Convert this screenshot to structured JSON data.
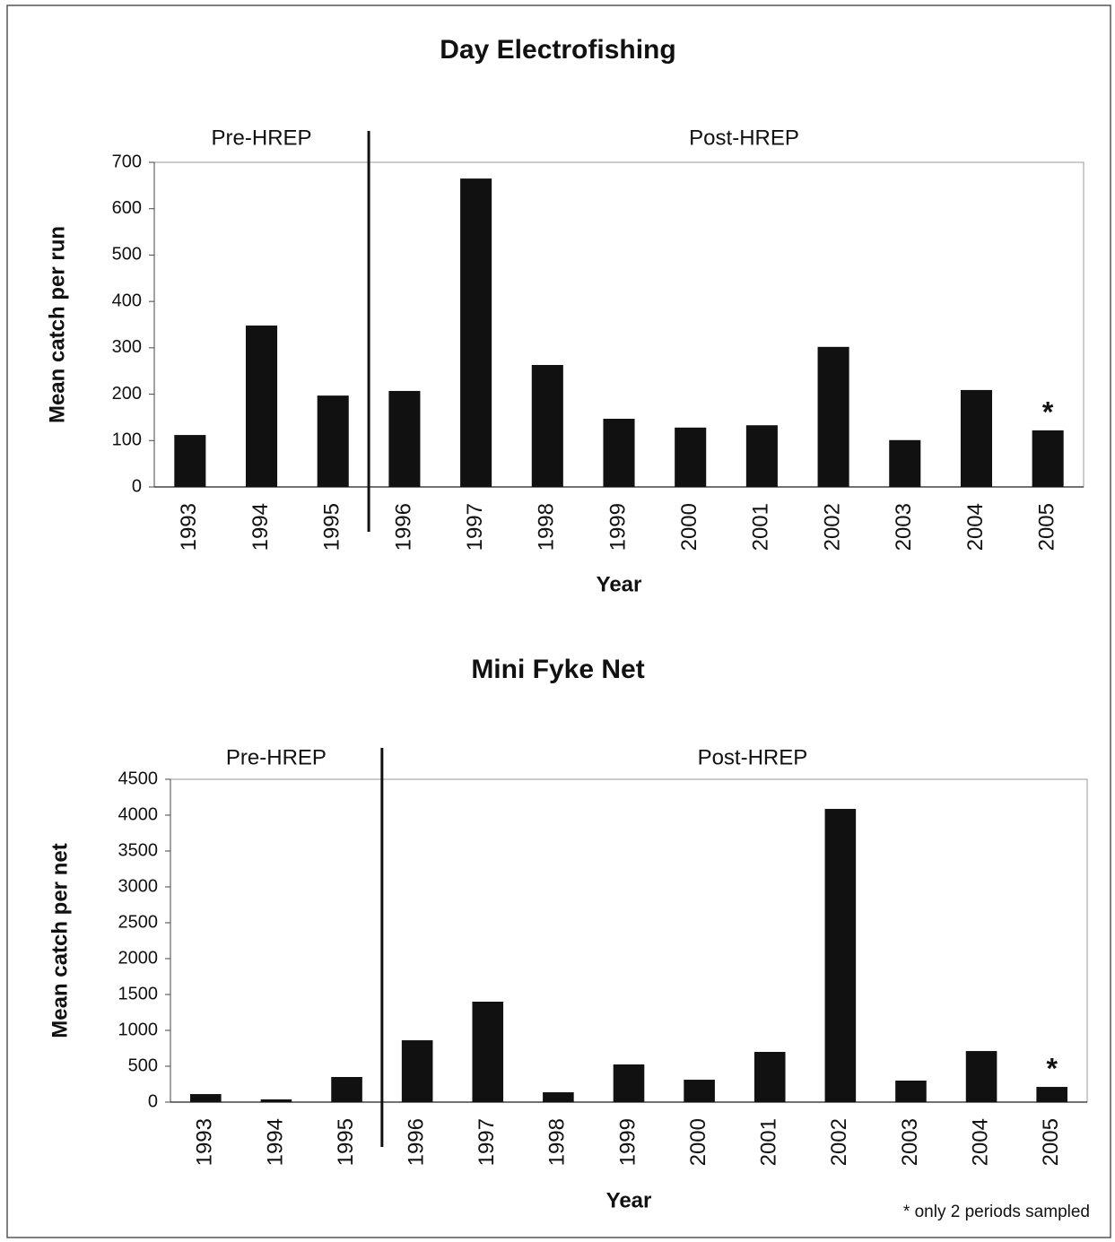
{
  "chart_data": [
    {
      "type": "bar",
      "title": "Day Electrofishing",
      "x_label": "Year",
      "y_label": "Mean catch per run",
      "categories": [
        "1993",
        "1994",
        "1995",
        "1996",
        "1997",
        "1998",
        "1999",
        "2000",
        "2001",
        "2002",
        "2003",
        "2004",
        "2005"
      ],
      "values": [
        112,
        348,
        197,
        207,
        665,
        263,
        147,
        128,
        133,
        302,
        101,
        209,
        122
      ],
      "color": "#111111",
      "ylim": [
        0,
        700
      ],
      "yticks": [
        0,
        100,
        200,
        300,
        400,
        500,
        600,
        700
      ],
      "annotations": [
        "Pre-HREP",
        "Post-HREP",
        "*"
      ]
    },
    {
      "type": "bar",
      "title": "Mini Fyke Net",
      "x_label": "Year",
      "y_label": "Mean catch per net",
      "categories": [
        "1993",
        "1994",
        "1995",
        "1996",
        "1997",
        "1998",
        "1999",
        "2000",
        "2001",
        "2002",
        "2003",
        "2004",
        "2005"
      ],
      "values": [
        112,
        38,
        350,
        862,
        1400,
        137,
        525,
        312,
        700,
        4087,
        300,
        712,
        212
      ],
      "color": "#111111",
      "ylim": [
        0,
        4500
      ],
      "yticks": [
        0,
        500,
        1000,
        1500,
        2000,
        2500,
        3000,
        3500,
        4000,
        4500
      ],
      "annotations": [
        "Pre-HREP",
        "Post-HREP",
        "*"
      ],
      "footnote": "* only 2 periods sampled"
    }
  ]
}
